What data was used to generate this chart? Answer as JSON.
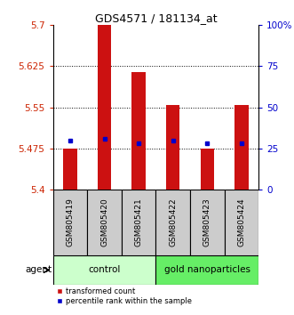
{
  "title": "GDS4571 / 181134_at",
  "samples": [
    "GSM805419",
    "GSM805420",
    "GSM805421",
    "GSM805422",
    "GSM805423",
    "GSM805424"
  ],
  "bar_bottom": 5.4,
  "bar_tops": [
    5.475,
    5.7,
    5.615,
    5.555,
    5.475,
    5.555
  ],
  "blue_dots": [
    5.49,
    5.492,
    5.485,
    5.49,
    5.485,
    5.485
  ],
  "ylim_main": [
    5.4,
    5.7
  ],
  "yticks_main": [
    5.7,
    5.625,
    5.55,
    5.475,
    5.4
  ],
  "ytick_labels_left": [
    "5.7",
    "5.625",
    "5.55",
    "5.475",
    "5.4"
  ],
  "yticks_right": [
    100,
    75,
    50,
    25,
    0
  ],
  "ytick_right_labels": [
    "100%",
    "75",
    "50",
    "25",
    "0"
  ],
  "bar_color": "#cc1111",
  "dot_color": "#0000cc",
  "left_tick_color": "#cc2200",
  "right_tick_color": "#0000cc",
  "group_labels": [
    "control",
    "gold nanoparticles"
  ],
  "group_ranges": [
    [
      0,
      3
    ],
    [
      3,
      6
    ]
  ],
  "group_colors_light": [
    "#ccffcc",
    "#66ee66"
  ],
  "agent_label": "agent",
  "legend_items": [
    "transformed count",
    "percentile rank within the sample"
  ],
  "background_label": "#cccccc",
  "bar_width": 0.4,
  "figsize": [
    3.31,
    3.54
  ],
  "dpi": 100
}
